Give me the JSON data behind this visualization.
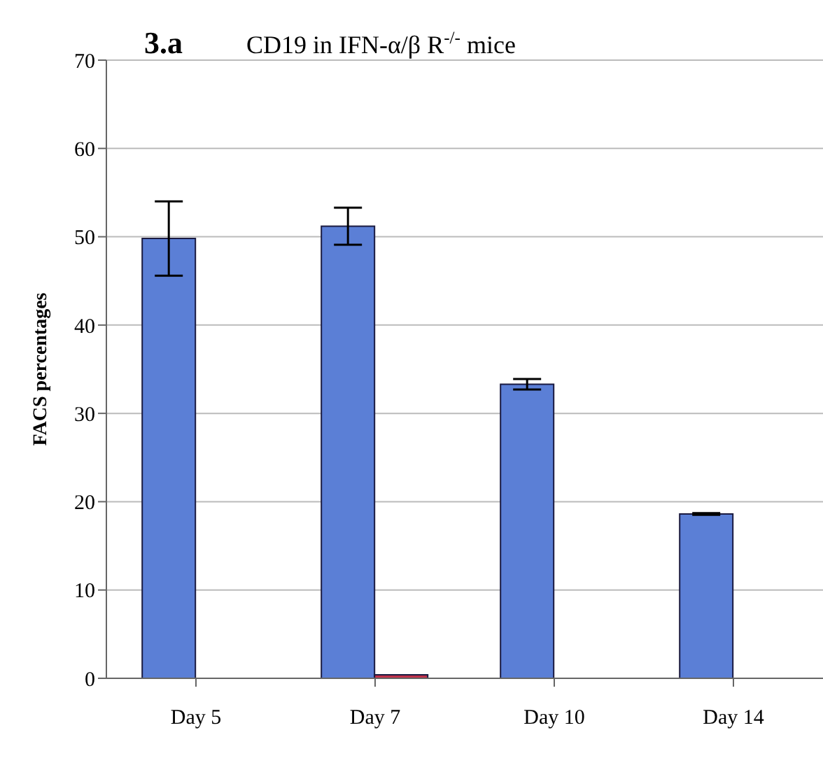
{
  "chart_data": {
    "type": "bar",
    "title": "3.a",
    "subtitle": "CD19 in IFN-α/β R$^{-/-}$ mice",
    "ylabel": "FACS percentages",
    "categories": [
      "Day 5",
      "Day 7",
      "Day 10",
      "Day 14"
    ],
    "series": [
      {
        "color": "#5b7fd6",
        "values": [
          49.8,
          51.2,
          33.3,
          18.6
        ],
        "errors": [
          4.2,
          2.1,
          0.6,
          0.1
        ]
      },
      {
        "color": "#c0304a",
        "values": [
          null,
          0.4,
          null,
          null
        ]
      }
    ],
    "ylim": [
      0,
      70
    ],
    "yticks": [
      0,
      10,
      20,
      30,
      40,
      50,
      60,
      70
    ],
    "grid": "y",
    "legend": false
  }
}
